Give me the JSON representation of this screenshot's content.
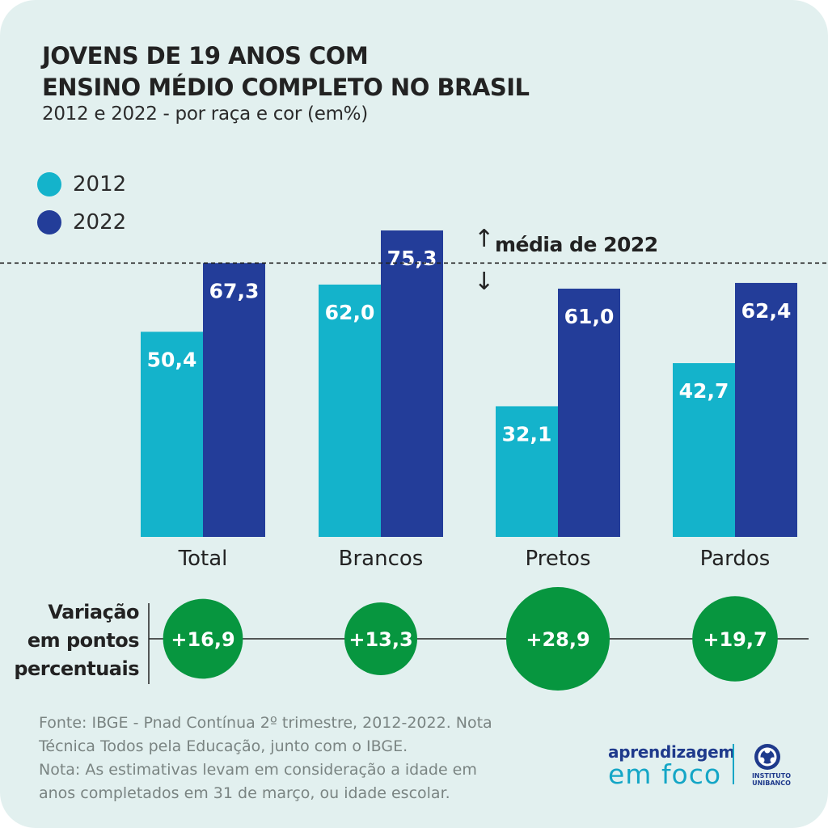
{
  "header": {
    "title": "JOVENS DE 19 ANOS COM\nENSINO MÉDIO COMPLETO NO BRASIL",
    "subtitle": "2012 e 2022 - por raça e cor (em%)"
  },
  "legend": [
    {
      "label": "2012",
      "color": "#14b3cb"
    },
    {
      "label": "2022",
      "color": "#233d99"
    }
  ],
  "average": {
    "label": "média de 2022",
    "value": 67.3
  },
  "chart_data": {
    "type": "bar",
    "categories": [
      "Total",
      "Brancos",
      "Pretos",
      "Pardos"
    ],
    "series": [
      {
        "name": "2012",
        "values": [
          50.4,
          62.0,
          32.1,
          42.7
        ],
        "labels": [
          "50,4",
          "62,0",
          "32,1",
          "42,7"
        ],
        "color": "#14b3cb"
      },
      {
        "name": "2022",
        "values": [
          67.3,
          75.3,
          61.0,
          62.4
        ],
        "labels": [
          "67,3",
          "75,3",
          "61,0",
          "62,4"
        ],
        "color": "#233d99"
      }
    ],
    "reference_line": {
      "value": 67.3,
      "style": "dashed",
      "label": "média de 2022"
    },
    "ylim": [
      0,
      75.3
    ],
    "grid": false,
    "legend_position": "top-left"
  },
  "variation": {
    "label": "Variação\nem pontos\npercentuais",
    "values": [
      16.9,
      13.3,
      28.9,
      19.7
    ],
    "labels": [
      "+16,9",
      "+13,3",
      "+28,9",
      "+19,7"
    ],
    "color": "#07963f"
  },
  "footer": {
    "source": "Fonte: IBGE - Pnad Contínua 2º trimestre, 2012-2022. Nota\nTécnica Todos pela Educação, junto com o IBGE.\nNota: As estimativas levam em consideração a idade em\nanos completados em 31 de março, ou idade escolar."
  },
  "logo": {
    "line1": "aprendizagem",
    "line2": "em foco",
    "brand": "INSTITUTO\nUNIBANCO",
    "color_primary": "#1f3a8c",
    "color_accent": "#14a6c6"
  }
}
